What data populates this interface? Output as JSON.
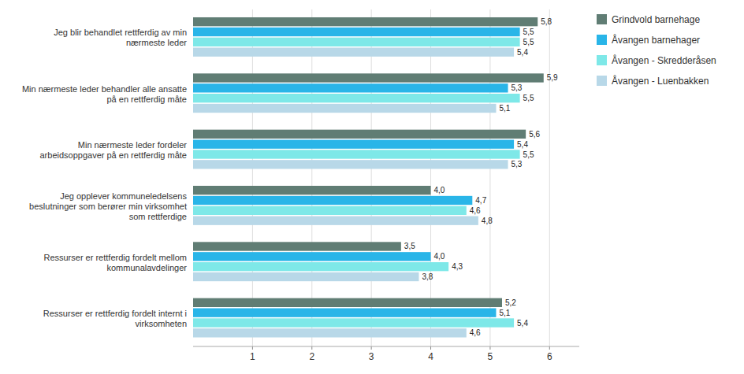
{
  "chart_data": {
    "type": "bar",
    "orientation": "horizontal",
    "categories": [
      "Ressurser er rettferdig fordelt internt i\nvirksomheten",
      "Ressurser er rettferdig fordelt mellom\nkommunalavdelinger",
      "Jeg opplever kommuneledelsens\nbeslutninger som berører min virksomhet\nsom rettferdige",
      "Min nærmeste leder fordeler\narbeidsoppgaver på en rettferdig måte",
      "Min nærmeste leder behandler alle ansatte\npå en rettferdig måte",
      "Jeg blir behandlet rettferdig av min\nnærmeste leder"
    ],
    "series": [
      {
        "name": "Grindvold barnehage",
        "color": "#607d74",
        "values": [
          5.2,
          3.5,
          4.0,
          5.6,
          5.9,
          5.8
        ],
        "value_labels": [
          "5,2",
          "3,5",
          "4,0",
          "5,6",
          "5,9",
          "5,8"
        ]
      },
      {
        "name": "Åvangen barnehager",
        "color": "#29b5e8",
        "values": [
          5.1,
          4.0,
          4.7,
          5.4,
          5.3,
          5.5
        ],
        "value_labels": [
          "5,1",
          "4,0",
          "4,7",
          "5,4",
          "5,3",
          "5,5"
        ]
      },
      {
        "name": "Åvangen - Skredderåsen",
        "color": "#7ee8e8",
        "values": [
          5.4,
          4.3,
          4.6,
          5.5,
          5.5,
          5.5
        ],
        "value_labels": [
          "5,4",
          "4,3",
          "4,6",
          "5,5",
          "5,5",
          "5,5"
        ]
      },
      {
        "name": "Åvangen - Luenbakken",
        "color": "#b8d8e8",
        "values": [
          4.6,
          3.8,
          4.8,
          5.3,
          5.1,
          5.4
        ],
        "value_labels": [
          "4,6",
          "3,8",
          "4,8",
          "5,3",
          "5,1",
          "5,4"
        ]
      }
    ],
    "xlim": [
      0,
      6.5
    ],
    "xticks": [
      1,
      2,
      3,
      4,
      5,
      6
    ],
    "grid": true,
    "legend": "right",
    "data_labels": true
  }
}
